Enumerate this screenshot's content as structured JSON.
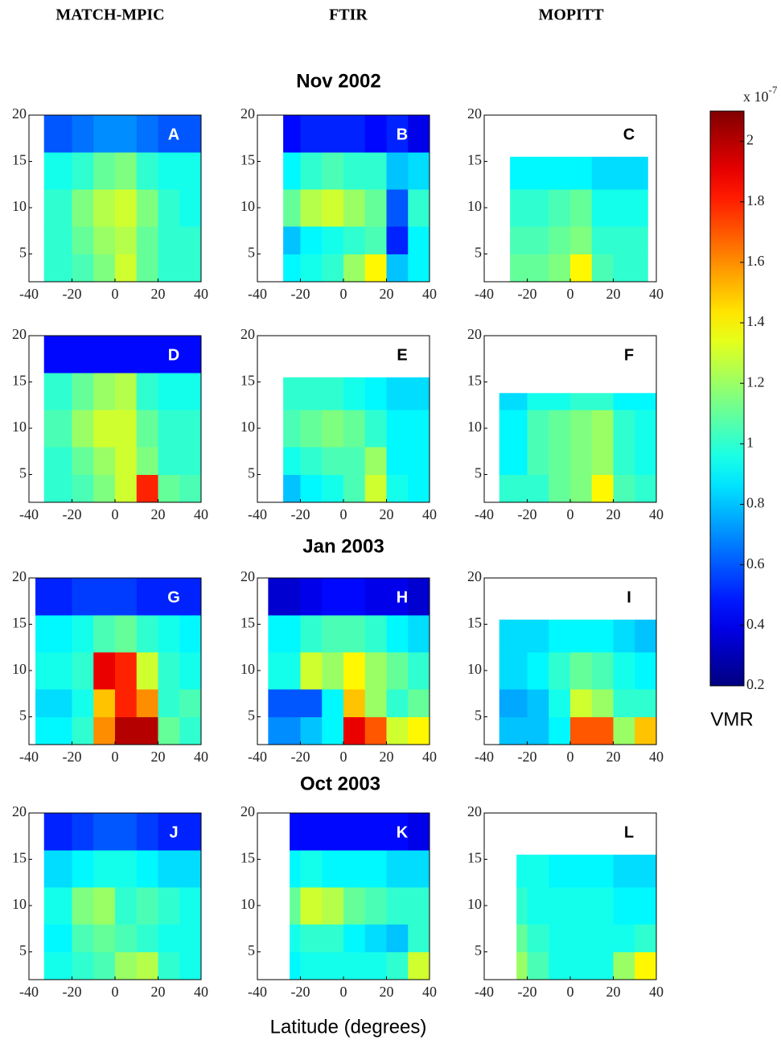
{
  "column_titles": [
    "MATCH-MPIC",
    "FTIR",
    "MOPITT"
  ],
  "row_titles": [
    "Nov 2002",
    "Jan 2003",
    "Oct 2003"
  ],
  "x_label": "Latitude (degrees)",
  "colorbar": {
    "label": "VMR",
    "scale_base": "x 10",
    "scale_exponent": "-7",
    "clim": [
      0.2,
      2.1
    ],
    "ticks": [
      0.2,
      0.4,
      0.6,
      0.8,
      1,
      1.2,
      1.4,
      1.6,
      1.8,
      2
    ]
  },
  "chart_data": [
    {
      "type": "heatmap",
      "label": "A",
      "xlim": [
        -40,
        40
      ],
      "ylim": [
        2,
        20
      ],
      "xticks": [
        -40,
        -20,
        0,
        20,
        40
      ],
      "yticks": [
        5,
        10,
        15,
        20
      ],
      "x": [
        -33,
        -20,
        -10,
        0,
        10,
        20,
        30,
        40
      ],
      "y": [
        2,
        5,
        8,
        12,
        16,
        20
      ],
      "values": [
        [
          1.0,
          1.05,
          1.15,
          1.3,
          1.1,
          1.0,
          1.0
        ],
        [
          1.0,
          1.1,
          1.2,
          1.25,
          1.1,
          1.0,
          1.0
        ],
        [
          1.0,
          1.15,
          1.25,
          1.3,
          1.15,
          1.0,
          0.95
        ],
        [
          0.95,
          1.0,
          1.1,
          1.15,
          1.0,
          0.95,
          0.95
        ],
        [
          0.6,
          0.65,
          0.7,
          0.7,
          0.65,
          0.6,
          0.6
        ]
      ]
    },
    {
      "type": "heatmap",
      "label": "B",
      "xlim": [
        -40,
        40
      ],
      "ylim": [
        2,
        20
      ],
      "xticks": [
        -40,
        -20,
        0,
        20,
        40
      ],
      "yticks": [
        5,
        10,
        15,
        20
      ],
      "x": [
        -28,
        -20,
        -10,
        0,
        10,
        20,
        30,
        40
      ],
      "y": [
        2,
        5,
        8,
        12,
        16,
        20
      ],
      "values": [
        [
          0.9,
          0.95,
          1.0,
          1.2,
          1.4,
          0.8,
          0.9
        ],
        [
          0.8,
          0.9,
          0.95,
          1.0,
          1.05,
          0.5,
          0.9
        ],
        [
          1.1,
          1.25,
          1.3,
          1.2,
          1.1,
          0.6,
          1.0
        ],
        [
          0.9,
          1.0,
          1.05,
          1.0,
          1.0,
          0.8,
          0.85
        ],
        [
          0.45,
          0.5,
          0.5,
          0.5,
          0.45,
          0.5,
          0.4
        ]
      ]
    },
    {
      "type": "heatmap",
      "label": "C",
      "xlim": [
        -40,
        40
      ],
      "ylim": [
        2,
        20
      ],
      "xticks": [
        -40,
        -20,
        0,
        20,
        40
      ],
      "yticks": [
        5,
        10,
        15,
        20
      ],
      "x": [
        -28,
        -20,
        -10,
        0,
        10,
        20,
        30,
        36
      ],
      "y": [
        2,
        5,
        8,
        12,
        15.5
      ],
      "values": [
        [
          1.1,
          1.1,
          1.15,
          1.4,
          1.05,
          1.0,
          1.0
        ],
        [
          1.05,
          1.05,
          1.1,
          1.15,
          1.0,
          1.0,
          1.0
        ],
        [
          1.0,
          1.0,
          1.05,
          1.1,
          0.95,
          0.95,
          0.95
        ],
        [
          0.9,
          0.9,
          0.9,
          0.9,
          0.85,
          0.85,
          0.85
        ]
      ]
    },
    {
      "type": "heatmap",
      "label": "D",
      "xlim": [
        -40,
        40
      ],
      "ylim": [
        2,
        20
      ],
      "xticks": [
        -40,
        -20,
        0,
        20,
        40
      ],
      "yticks": [
        5,
        10,
        15,
        20
      ],
      "x": [
        -33,
        -20,
        -10,
        0,
        10,
        20,
        30,
        40
      ],
      "y": [
        2,
        5,
        8,
        12,
        16,
        20
      ],
      "values": [
        [
          1.0,
          1.05,
          1.15,
          1.3,
          1.8,
          1.1,
          1.05
        ],
        [
          1.0,
          1.1,
          1.2,
          1.3,
          1.15,
          1.0,
          1.0
        ],
        [
          1.05,
          1.2,
          1.3,
          1.3,
          1.1,
          1.0,
          1.0
        ],
        [
          1.0,
          1.1,
          1.2,
          1.25,
          1.0,
          0.95,
          0.95
        ],
        [
          0.45,
          0.45,
          0.45,
          0.45,
          0.45,
          0.45,
          0.45
        ]
      ]
    },
    {
      "type": "heatmap",
      "label": "E",
      "xlim": [
        -40,
        40
      ],
      "ylim": [
        2,
        20
      ],
      "xticks": [
        -40,
        -20,
        0,
        20,
        40
      ],
      "yticks": [
        5,
        10,
        15,
        20
      ],
      "x": [
        -28,
        -20,
        -10,
        0,
        10,
        20,
        30,
        40
      ],
      "y": [
        2,
        5,
        8,
        12,
        15.5
      ],
      "values": [
        [
          0.8,
          0.9,
          0.95,
          1.05,
          1.3,
          0.95,
          0.9
        ],
        [
          0.95,
          1.0,
          1.05,
          1.05,
          1.2,
          0.9,
          0.9
        ],
        [
          1.05,
          1.1,
          1.15,
          1.1,
          1.0,
          0.9,
          0.9
        ],
        [
          1.0,
          1.0,
          1.0,
          0.95,
          0.9,
          0.85,
          0.85
        ]
      ]
    },
    {
      "type": "heatmap",
      "label": "F",
      "xlim": [
        -40,
        40
      ],
      "ylim": [
        2,
        20
      ],
      "xticks": [
        -40,
        -20,
        0,
        20,
        40
      ],
      "yticks": [
        5,
        10,
        15,
        20
      ],
      "x": [
        -33,
        -20,
        -10,
        0,
        10,
        20,
        30,
        40
      ],
      "y": [
        2,
        5,
        8,
        12,
        13.8
      ],
      "values": [
        [
          1.0,
          1.0,
          1.1,
          1.15,
          1.4,
          1.05,
          1.0
        ],
        [
          0.9,
          1.05,
          1.1,
          1.15,
          1.2,
          1.0,
          0.95
        ],
        [
          0.9,
          1.05,
          1.1,
          1.15,
          1.2,
          1.0,
          0.95
        ],
        [
          0.85,
          0.95,
          0.95,
          1.0,
          1.0,
          0.9,
          0.9
        ]
      ]
    },
    {
      "type": "heatmap",
      "label": "G",
      "xlim": [
        -40,
        40
      ],
      "ylim": [
        2,
        20
      ],
      "xticks": [
        -40,
        -20,
        0,
        20,
        40
      ],
      "yticks": [
        5,
        10,
        15,
        20
      ],
      "x": [
        -37,
        -20,
        -10,
        0,
        10,
        20,
        30,
        40
      ],
      "y": [
        2,
        5,
        8,
        12,
        16,
        20
      ],
      "values": [
        [
          0.9,
          1.0,
          1.6,
          2.0,
          2.0,
          1.1,
          1.0
        ],
        [
          0.85,
          0.95,
          1.5,
          1.8,
          1.6,
          1.0,
          1.05
        ],
        [
          0.95,
          1.0,
          1.9,
          1.8,
          1.3,
          1.0,
          0.95
        ],
        [
          0.9,
          0.95,
          1.05,
          1.1,
          1.0,
          0.95,
          0.9
        ],
        [
          0.5,
          0.55,
          0.55,
          0.55,
          0.5,
          0.5,
          0.5
        ]
      ]
    },
    {
      "type": "heatmap",
      "label": "H",
      "xlim": [
        -40,
        40
      ],
      "ylim": [
        2,
        20
      ],
      "xticks": [
        -40,
        -20,
        0,
        20,
        40
      ],
      "yticks": [
        5,
        10,
        15,
        20
      ],
      "x": [
        -35,
        -20,
        -10,
        0,
        10,
        20,
        30,
        40
      ],
      "y": [
        2,
        5,
        8,
        12,
        16,
        20
      ],
      "values": [
        [
          0.7,
          0.8,
          0.9,
          1.9,
          1.7,
          1.3,
          1.4
        ],
        [
          0.6,
          0.6,
          0.9,
          1.5,
          1.2,
          1.0,
          1.1
        ],
        [
          0.95,
          1.3,
          1.2,
          1.4,
          1.2,
          1.1,
          1.0
        ],
        [
          0.9,
          1.0,
          1.05,
          1.05,
          1.0,
          0.9,
          0.85
        ],
        [
          0.35,
          0.4,
          0.45,
          0.45,
          0.4,
          0.4,
          0.35
        ]
      ]
    },
    {
      "type": "heatmap",
      "label": "I",
      "xlim": [
        -40,
        40
      ],
      "ylim": [
        2,
        20
      ],
      "xticks": [
        -40,
        -20,
        0,
        20,
        40
      ],
      "yticks": [
        5,
        10,
        15,
        20
      ],
      "x": [
        -33,
        -20,
        -10,
        0,
        10,
        20,
        30,
        40
      ],
      "y": [
        2,
        5,
        8,
        12,
        15.5
      ],
      "values": [
        [
          0.8,
          0.8,
          0.9,
          1.7,
          1.7,
          1.2,
          1.5
        ],
        [
          0.75,
          0.8,
          0.95,
          1.3,
          1.2,
          1.0,
          1.0
        ],
        [
          0.85,
          0.9,
          1.0,
          1.1,
          1.05,
          0.95,
          0.9
        ],
        [
          0.85,
          0.85,
          0.9,
          0.9,
          0.9,
          0.85,
          0.8
        ]
      ]
    },
    {
      "type": "heatmap",
      "label": "J",
      "xlim": [
        -40,
        40
      ],
      "ylim": [
        2,
        20
      ],
      "xticks": [
        -40,
        -20,
        0,
        20,
        40
      ],
      "yticks": [
        5,
        10,
        15,
        20
      ],
      "x": [
        -33,
        -20,
        -10,
        0,
        10,
        20,
        30,
        40
      ],
      "y": [
        2,
        5,
        8,
        12,
        16,
        20
      ],
      "values": [
        [
          0.95,
          1.0,
          1.05,
          1.2,
          1.25,
          1.0,
          0.95
        ],
        [
          0.9,
          1.05,
          1.1,
          1.05,
          1.0,
          0.95,
          0.95
        ],
        [
          0.95,
          1.15,
          1.2,
          1.0,
          1.05,
          1.0,
          0.95
        ],
        [
          0.85,
          0.9,
          0.95,
          0.95,
          0.9,
          0.85,
          0.85
        ],
        [
          0.5,
          0.55,
          0.6,
          0.6,
          0.55,
          0.5,
          0.5
        ]
      ]
    },
    {
      "type": "heatmap",
      "label": "K",
      "xlim": [
        -40,
        40
      ],
      "ylim": [
        2,
        20
      ],
      "xticks": [
        -40,
        -20,
        0,
        20,
        40
      ],
      "yticks": [
        5,
        10,
        15,
        20
      ],
      "x": [
        -25,
        -20,
        -10,
        0,
        10,
        20,
        30,
        40
      ],
      "y": [
        2,
        5,
        8,
        12,
        16,
        20
      ],
      "values": [
        [
          0.9,
          0.95,
          0.95,
          0.95,
          0.95,
          1.0,
          1.3
        ],
        [
          0.95,
          1.0,
          1.0,
          0.9,
          0.85,
          0.8,
          1.0
        ],
        [
          1.1,
          1.3,
          1.25,
          1.1,
          1.05,
          1.0,
          1.0
        ],
        [
          0.9,
          0.95,
          0.9,
          0.9,
          0.9,
          0.85,
          0.85
        ],
        [
          0.45,
          0.45,
          0.45,
          0.45,
          0.45,
          0.45,
          0.4
        ]
      ]
    },
    {
      "type": "heatmap",
      "label": "L",
      "xlim": [
        -40,
        40
      ],
      "ylim": [
        2,
        20
      ],
      "xticks": [
        -40,
        -20,
        0,
        20,
        40
      ],
      "yticks": [
        5,
        10,
        15,
        20
      ],
      "x": [
        -25,
        -20,
        -10,
        0,
        10,
        20,
        30,
        40
      ],
      "y": [
        2,
        5,
        8,
        12,
        15.5
      ],
      "values": [
        [
          1.2,
          1.05,
          0.95,
          0.95,
          0.95,
          1.2,
          1.4
        ],
        [
          1.1,
          1.0,
          0.95,
          0.95,
          0.95,
          0.95,
          1.0
        ],
        [
          1.0,
          0.95,
          0.95,
          0.95,
          0.95,
          0.9,
          0.9
        ],
        [
          0.95,
          0.95,
          0.9,
          0.9,
          0.9,
          0.85,
          0.85
        ]
      ]
    }
  ]
}
